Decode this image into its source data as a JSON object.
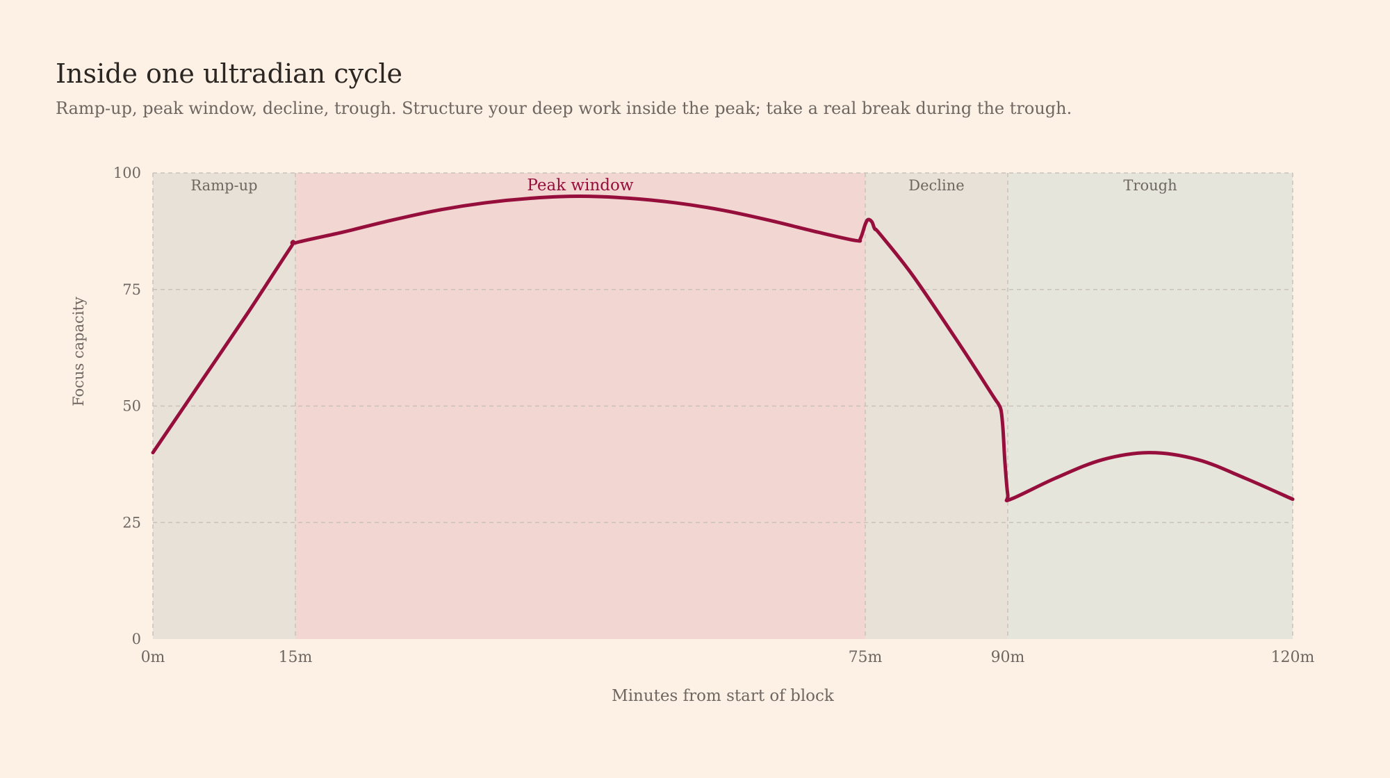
{
  "header": {
    "title": "Inside one ultradian cycle",
    "subtitle": "Ramp-up, peak window, decline, trough. Structure your deep work inside the peak; take a real break during the trough."
  },
  "colors": {
    "background": "#fdf1e6",
    "line": "#960f3c",
    "text": "#6e6761",
    "grid": "#c9c2ba",
    "phase_neutral": "#e8e1d8",
    "phase_peak": "#f2d6d2",
    "phase_trough": "#e5e5dc"
  },
  "chart_data": {
    "type": "line",
    "title": "Inside one ultradian cycle",
    "subtitle": "Ramp-up, peak window, decline, trough. Structure your deep work inside the peak; take a real break during the trough.",
    "xlabel": "Minutes from start of block",
    "ylabel": "Focus capacity",
    "xlim": [
      0,
      120
    ],
    "ylim": [
      0,
      100
    ],
    "grid": true,
    "x_ticks": [
      {
        "value": 0,
        "label": "0m"
      },
      {
        "value": 15,
        "label": "15m"
      },
      {
        "value": 75,
        "label": "75m"
      },
      {
        "value": 90,
        "label": "90m"
      },
      {
        "value": 120,
        "label": "120m"
      }
    ],
    "y_ticks": [
      {
        "value": 0,
        "label": "0"
      },
      {
        "value": 25,
        "label": "25"
      },
      {
        "value": 50,
        "label": "50"
      },
      {
        "value": 75,
        "label": "75"
      },
      {
        "value": 100,
        "label": "100"
      }
    ],
    "phases": [
      {
        "label": "Ramp-up",
        "start": 0,
        "end": 15,
        "kind": "neutral"
      },
      {
        "label": "Peak window",
        "start": 15,
        "end": 75,
        "kind": "peak"
      },
      {
        "label": "Decline",
        "start": 75,
        "end": 90,
        "kind": "neutral"
      },
      {
        "label": "Trough",
        "start": 90,
        "end": 120,
        "kind": "trough"
      }
    ],
    "series": [
      {
        "x": [
          0,
          5,
          10,
          14.5,
          15,
          20,
          25,
          30,
          35,
          40,
          45,
          50,
          55,
          60,
          65,
          70,
          74,
          74.5,
          75,
          75.3,
          75.7,
          76,
          76.5,
          80,
          85,
          88.5,
          89,
          89.3,
          89.5,
          89.7,
          90,
          90.3,
          95,
          100,
          105,
          110,
          115,
          120
        ],
        "y": [
          40,
          55,
          70,
          84,
          85,
          87.3,
          89.8,
          92.0,
          93.6,
          94.6,
          95.0,
          94.6,
          93.6,
          92.0,
          89.8,
          87.3,
          85.5,
          86,
          89,
          90,
          89.5,
          88,
          87,
          78,
          63,
          52,
          50.5,
          49,
          45,
          38,
          31,
          30,
          34.5,
          38.5,
          40,
          38.5,
          34.5,
          30
        ]
      }
    ]
  }
}
